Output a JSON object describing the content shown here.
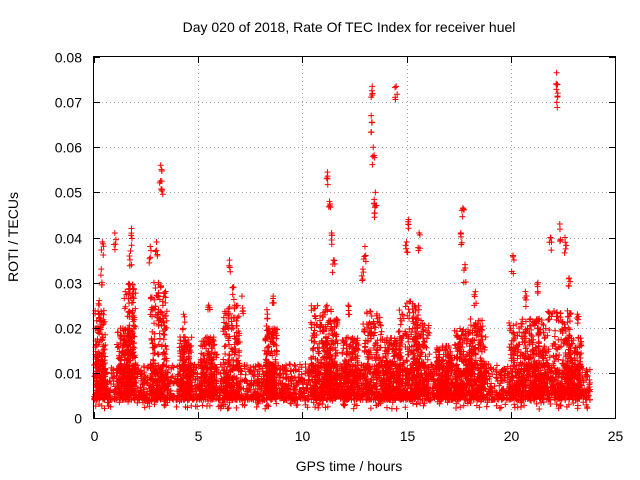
{
  "chart_data": {
    "type": "scatter",
    "title": "Day 020 of 2018, Rate Of TEC Index for receiver huel",
    "xlabel": "GPS time / hours",
    "ylabel": "ROTI / TECUs",
    "xlim": [
      0,
      25
    ],
    "ylim": [
      0,
      0.08
    ],
    "xticks": [
      0,
      5,
      10,
      15,
      20,
      25
    ],
    "yticks": [
      0,
      0.01,
      0.02,
      0.03,
      0.04,
      0.05,
      0.06,
      0.07,
      0.08
    ],
    "xtick_labels": [
      "0",
      "5",
      "10",
      "15",
      "20",
      "25"
    ],
    "ytick_labels": [
      "0",
      "0.01",
      "0.02",
      "0.03",
      "0.04",
      "0.05",
      "0.06",
      "0.07",
      "0.08"
    ],
    "grid": true,
    "marker": "+",
    "color": "#ff0000",
    "series": [
      {
        "name": "ROTI",
        "x_range": [
          0,
          23.8
        ],
        "baseline_typical": [
          0.004,
          0.012
        ],
        "peaks": [
          {
            "x": 0.25,
            "y": 0.026
          },
          {
            "x": 0.4,
            "y": 0.039
          },
          {
            "x": 0.35,
            "y": 0.033
          },
          {
            "x": 1.0,
            "y": 0.041
          },
          {
            "x": 1.5,
            "y": 0.028
          },
          {
            "x": 1.75,
            "y": 0.037
          },
          {
            "x": 1.8,
            "y": 0.042
          },
          {
            "x": 2.7,
            "y": 0.038
          },
          {
            "x": 3.0,
            "y": 0.039
          },
          {
            "x": 3.2,
            "y": 0.056
          },
          {
            "x": 3.25,
            "y": 0.0525
          },
          {
            "x": 3.1,
            "y": 0.03
          },
          {
            "x": 4.3,
            "y": 0.023
          },
          {
            "x": 5.5,
            "y": 0.025
          },
          {
            "x": 6.5,
            "y": 0.035
          },
          {
            "x": 6.7,
            "y": 0.029
          },
          {
            "x": 7.1,
            "y": 0.027
          },
          {
            "x": 8.3,
            "y": 0.024
          },
          {
            "x": 8.6,
            "y": 0.027
          },
          {
            "x": 11.2,
            "y": 0.0545
          },
          {
            "x": 11.3,
            "y": 0.048
          },
          {
            "x": 11.4,
            "y": 0.041
          },
          {
            "x": 11.5,
            "y": 0.035
          },
          {
            "x": 12.2,
            "y": 0.025
          },
          {
            "x": 12.9,
            "y": 0.033
          },
          {
            "x": 13.0,
            "y": 0.038
          },
          {
            "x": 13.3,
            "y": 0.067
          },
          {
            "x": 13.35,
            "y": 0.0735
          },
          {
            "x": 13.4,
            "y": 0.06
          },
          {
            "x": 13.5,
            "y": 0.05
          },
          {
            "x": 13.5,
            "y": 0.047
          },
          {
            "x": 14.5,
            "y": 0.0735
          },
          {
            "x": 15.1,
            "y": 0.044
          },
          {
            "x": 15.0,
            "y": 0.039
          },
          {
            "x": 15.6,
            "y": 0.041
          },
          {
            "x": 17.7,
            "y": 0.0465
          },
          {
            "x": 17.6,
            "y": 0.041
          },
          {
            "x": 17.8,
            "y": 0.034
          },
          {
            "x": 18.3,
            "y": 0.028
          },
          {
            "x": 20.1,
            "y": 0.036
          },
          {
            "x": 20.7,
            "y": 0.028
          },
          {
            "x": 21.3,
            "y": 0.03
          },
          {
            "x": 21.9,
            "y": 0.04
          },
          {
            "x": 22.2,
            "y": 0.0765
          },
          {
            "x": 22.25,
            "y": 0.072
          },
          {
            "x": 22.35,
            "y": 0.043
          },
          {
            "x": 22.6,
            "y": 0.04
          },
          {
            "x": 22.8,
            "y": 0.031
          },
          {
            "x": 23.2,
            "y": 0.023
          }
        ],
        "bursts": [
          {
            "center": 0.3,
            "width": 0.25,
            "peak": 0.024
          },
          {
            "center": 1.4,
            "width": 0.3,
            "peak": 0.02
          },
          {
            "center": 1.8,
            "width": 0.2,
            "peak": 0.03
          },
          {
            "center": 3.1,
            "width": 0.4,
            "peak": 0.03
          },
          {
            "center": 4.4,
            "width": 0.3,
            "peak": 0.018
          },
          {
            "center": 5.5,
            "width": 0.4,
            "peak": 0.018
          },
          {
            "center": 6.6,
            "width": 0.4,
            "peak": 0.025
          },
          {
            "center": 8.5,
            "width": 0.3,
            "peak": 0.02
          },
          {
            "center": 10.9,
            "width": 0.5,
            "peak": 0.025
          },
          {
            "center": 11.4,
            "width": 0.3,
            "peak": 0.022
          },
          {
            "center": 12.3,
            "width": 0.4,
            "peak": 0.018
          },
          {
            "center": 13.4,
            "width": 0.5,
            "peak": 0.024
          },
          {
            "center": 14.3,
            "width": 0.4,
            "peak": 0.018
          },
          {
            "center": 15.1,
            "width": 0.5,
            "peak": 0.026
          },
          {
            "center": 15.7,
            "width": 0.4,
            "peak": 0.022
          },
          {
            "center": 16.8,
            "width": 0.4,
            "peak": 0.016
          },
          {
            "center": 17.7,
            "width": 0.4,
            "peak": 0.02
          },
          {
            "center": 18.4,
            "width": 0.4,
            "peak": 0.022
          },
          {
            "center": 20.4,
            "width": 0.5,
            "peak": 0.022
          },
          {
            "center": 21.3,
            "width": 0.4,
            "peak": 0.022
          },
          {
            "center": 22.3,
            "width": 0.6,
            "peak": 0.024
          },
          {
            "center": 23.0,
            "width": 0.4,
            "peak": 0.018
          }
        ]
      }
    ]
  }
}
